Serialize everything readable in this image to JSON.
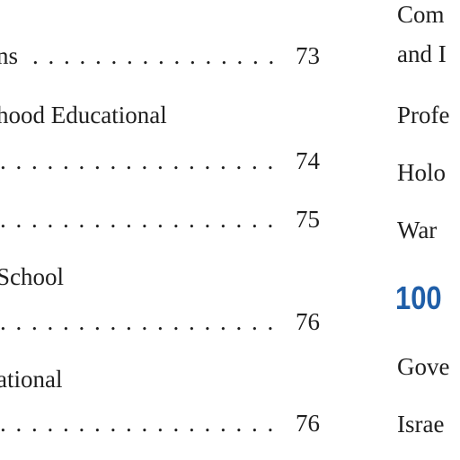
{
  "left_column": [
    {
      "text": "ns",
      "leaders": ". . . . . . . . . . . . . . . . .",
      "page": "73"
    },
    {
      "text": "hood Educational",
      "leaders": "",
      "page": ""
    },
    {
      "text": "",
      "leaders": ". . . . . . . . . . . . . . . . . . . . . . .",
      "page": "74"
    },
    {
      "text": "",
      "leaders": ". . . . . . . . . . . . . . . . . . . . . . .",
      "page": "75"
    },
    {
      "text": "School",
      "leaders": "",
      "page": ""
    },
    {
      "text": "",
      "leaders": ". . . . . . . . . . . . . . . . . . . . . . .",
      "page": "76"
    },
    {
      "text": "ational",
      "leaders": "",
      "page": ""
    },
    {
      "text": "",
      "leaders": ". . . . . . . . . . . . . . . . . . . . . . .",
      "page": "76"
    }
  ],
  "right_column": {
    "line1": "Com",
    "line2": "and I",
    "line3": "Profe",
    "line4": "Holo",
    "line5": "War",
    "section_number": "100",
    "line6": "Gove",
    "line7": "Israe"
  },
  "colors": {
    "text": "#1f1f1f",
    "accent": "#1f5ea8"
  }
}
